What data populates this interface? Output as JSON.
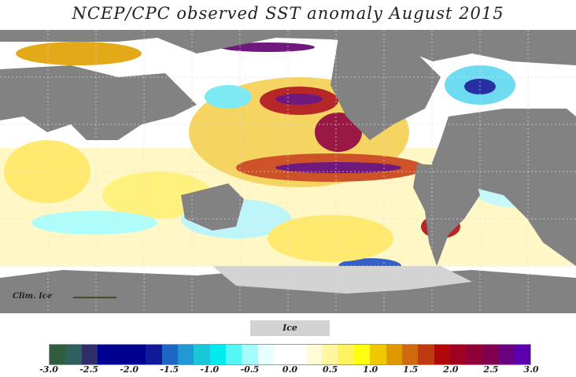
{
  "title": "NCEP/CPC observed SST anomaly August 2015",
  "legend": {
    "clim_ice_label": "Clim. Ice",
    "ice_label": "Ice",
    "colorbar_colors": [
      "#2e5e3e",
      "#2e6060",
      "#2e2e6a",
      "#000090",
      "#000090",
      "#000090",
      "#101a98",
      "#1e66c6",
      "#2299d4",
      "#18c8d8",
      "#00eaf0",
      "#55f6f6",
      "#a6fcfc",
      "#e6ffff",
      "#ffffff",
      "#ffffff",
      "#fffbd8",
      "#fff7a0",
      "#fff360",
      "#ffff10",
      "#f0c800",
      "#e09a00",
      "#d06a10",
      "#c03a10",
      "#b00808",
      "#a00020",
      "#900038",
      "#800050",
      "#6a0080",
      "#5a00b0"
    ],
    "tick_labels": [
      "-3.0",
      "-2.5",
      "-2.0",
      "-1.5",
      "-1.0",
      "-0.5",
      "0.0",
      "0.5",
      "1.0",
      "1.5",
      "2.0",
      "2.5",
      "3.0"
    ],
    "range": [
      -3.0,
      3.0
    ]
  },
  "colors": {
    "land": "#828282",
    "ocean": "#ffffff",
    "ice": "#d3d3d3"
  }
}
